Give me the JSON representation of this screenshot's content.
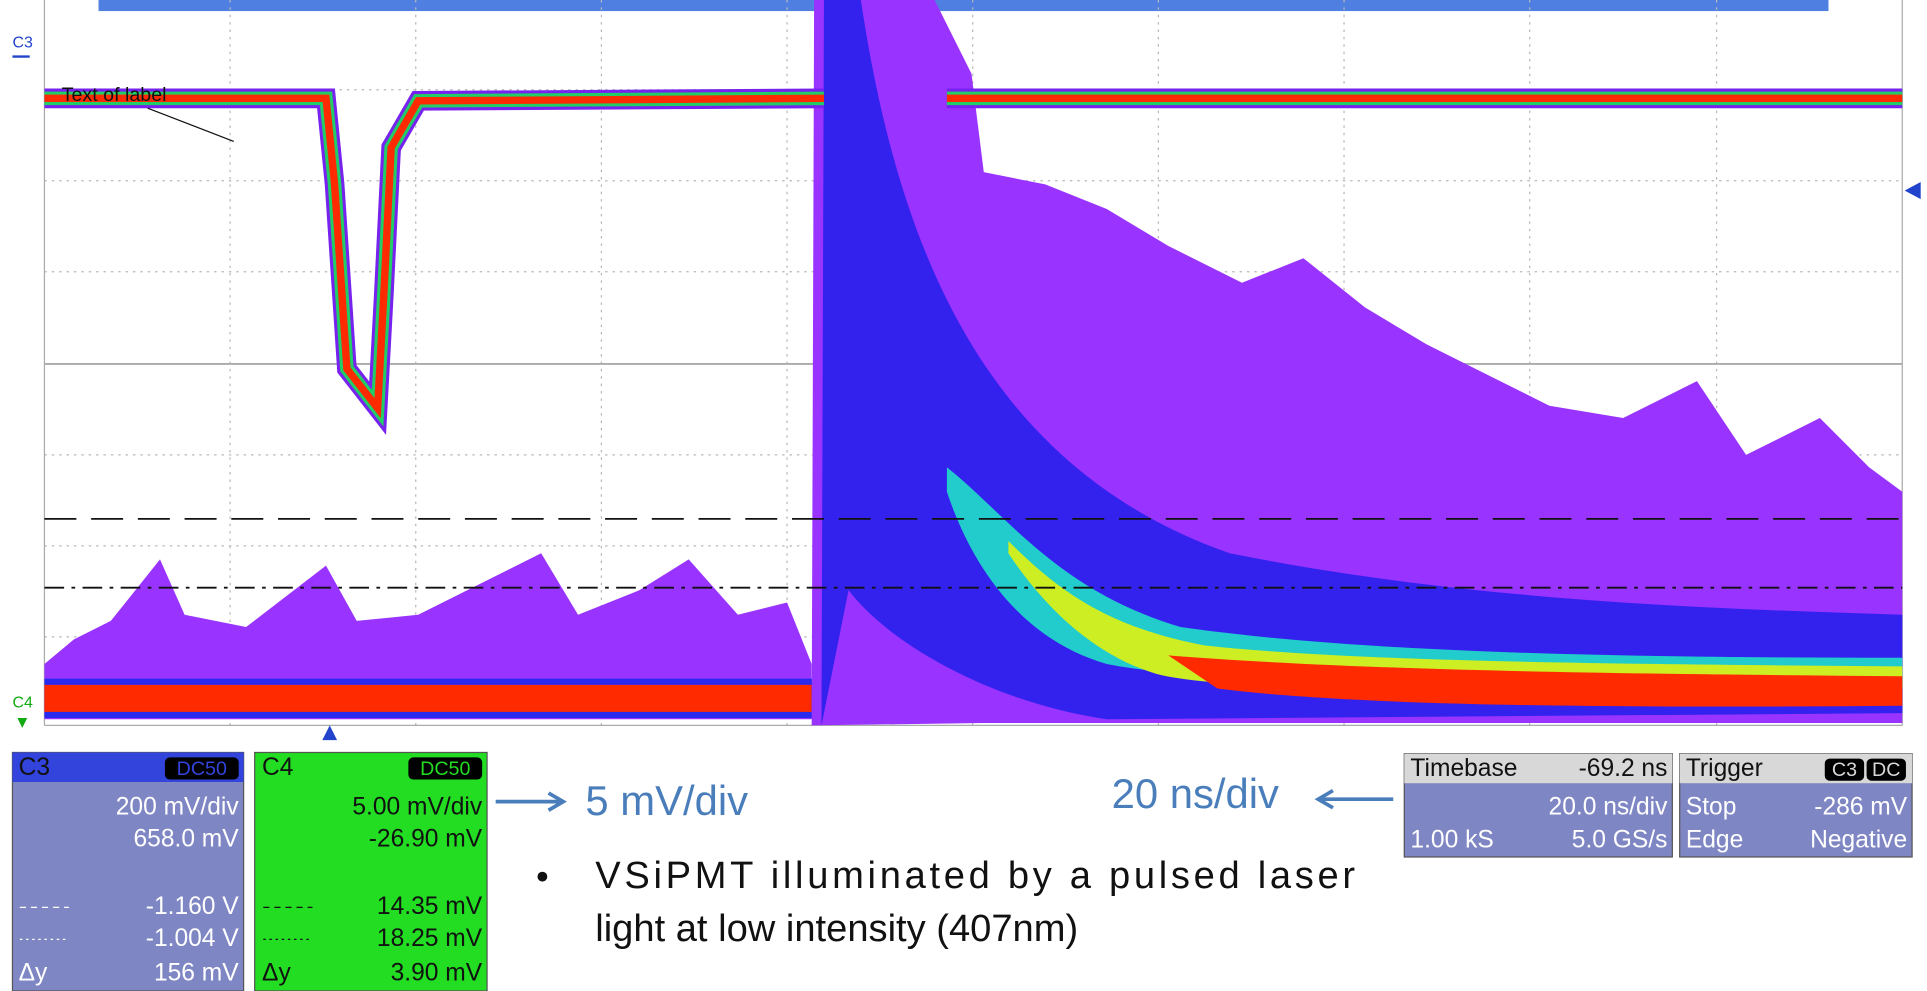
{
  "screen": {
    "channel_markers": [
      "C3",
      "C4"
    ],
    "trace_label": "Text of label"
  },
  "channel_panels": [
    {
      "name": "C3",
      "coupling": "DC50",
      "scale": "200 mV/div",
      "offset": "658.0 mV",
      "cursor_1": "-1.160 V",
      "cursor_2": "-1.004 V",
      "delta_label": "Δy",
      "delta": "156 mV"
    },
    {
      "name": "C4",
      "coupling": "DC50",
      "scale": "5.00 mV/div",
      "offset": "-26.90 mV",
      "cursor_1": "14.35 mV",
      "cursor_2": "18.25 mV",
      "delta_label": "Δy",
      "delta": "3.90 mV"
    }
  ],
  "timebase": {
    "title": "Timebase",
    "delay": "-69.2 ns",
    "scale": "20.0 ns/div",
    "samples": "1.00 kS",
    "rate": "5.0 GS/s"
  },
  "trigger": {
    "title": "Trigger",
    "source": "C3",
    "coupling": "DC",
    "mode": "Stop",
    "level": "-286 mV",
    "type": "Edge",
    "slope": "Negative"
  },
  "annotations": {
    "vertical_scale": "5 mV/div",
    "horizontal_scale": "20 ns/div",
    "bullet": [
      "VSiPMT illuminated by a pulsed laser",
      "light at low intensity (407nm)"
    ]
  }
}
